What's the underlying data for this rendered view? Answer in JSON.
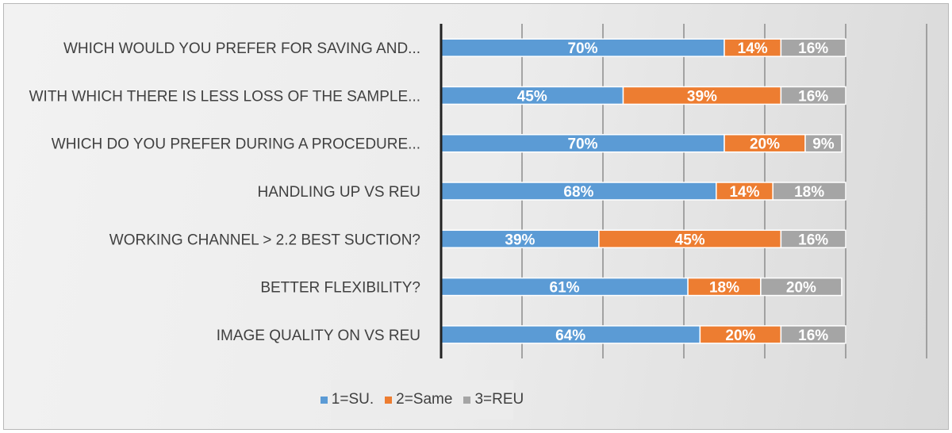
{
  "chart_data": {
    "type": "bar",
    "orientation": "horizontal",
    "stacked": true,
    "categories": [
      "WHICH WOULD YOU PREFER FOR SAVING AND...",
      "WITH WHICH THERE IS LESS LOSS OF THE SAMPLE...",
      "WHICH DO YOU PREFER DURING A PROCEDURE...",
      "HANDLING UP VS REU",
      "WORKING CHANNEL > 2.2 BEST SUCTION?",
      "BETTER FLEXIBILITY?",
      "IMAGE QUALITY ON VS REU"
    ],
    "series": [
      {
        "name": "1=SU.",
        "color": "#5b9bd5",
        "values": [
          70,
          45,
          70,
          68,
          39,
          61,
          64
        ]
      },
      {
        "name": "2=Same",
        "color": "#ed7d31",
        "values": [
          14,
          39,
          20,
          14,
          45,
          18,
          20
        ]
      },
      {
        "name": "3=REU",
        "color": "#a5a5a5",
        "values": [
          16,
          16,
          9,
          18,
          16,
          20,
          16
        ]
      }
    ],
    "xlim": [
      0,
      120
    ],
    "grid": true,
    "legend": "bottom"
  }
}
